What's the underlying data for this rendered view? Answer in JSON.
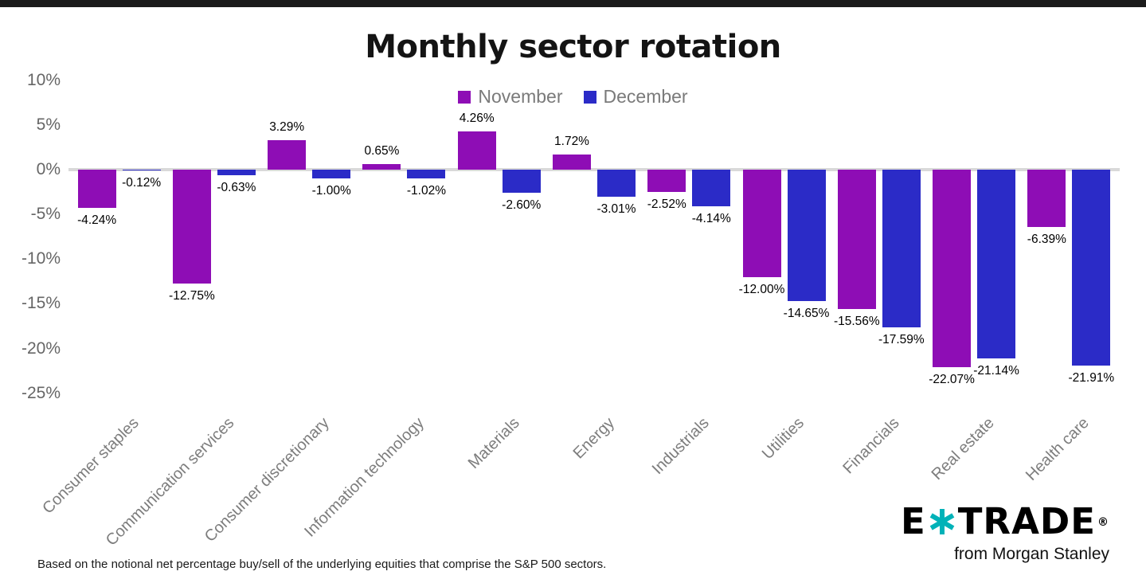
{
  "top_bar": {
    "color": "#1b1b1b"
  },
  "chart_data": {
    "type": "bar",
    "title": "Monthly sector rotation",
    "categories": [
      "Consumer staples",
      "Communication services",
      "Consumer discretionary",
      "Information technology",
      "Materials",
      "Energy",
      "Industrials",
      "Utilities",
      "Financials",
      "Real estate",
      "Health care"
    ],
    "series": [
      {
        "name": "November",
        "color": "#8e0db5",
        "values": [
          -4.24,
          -12.75,
          3.29,
          0.65,
          4.26,
          1.72,
          -2.52,
          -12.0,
          -15.56,
          -22.07,
          -6.39
        ]
      },
      {
        "name": "December",
        "color": "#2b2bc7",
        "values": [
          -0.12,
          -0.63,
          -1.0,
          -1.02,
          -2.6,
          -3.01,
          -4.14,
          -14.65,
          -17.59,
          -21.14,
          -21.91
        ]
      }
    ],
    "yticks": [
      10,
      5,
      0,
      -5,
      -10,
      -15,
      -20,
      -25
    ],
    "ytick_labels": [
      "10%",
      "5%",
      "0%",
      "-5%",
      "-10%",
      "-15%",
      "-20%",
      "-25%"
    ],
    "ylim": [
      -25,
      10
    ],
    "xlabel": "",
    "ylabel": "",
    "grid": false,
    "legend_position": "top-center",
    "value_label_format": "0.00%",
    "zero_line_color": "#d9d9d9",
    "tick_label_color": "#666666",
    "category_label_color": "#7d7d7d"
  },
  "footnote": "Based on the notional net percentage buy/sell of the underlying equities that comprise the S&P 500 sectors.",
  "logo": {
    "prefix": "E",
    "suffix": "TRADE",
    "registered": "®",
    "tagline": "from Morgan Stanley",
    "star_color": "#00b2b8",
    "text_color": "#000000"
  }
}
